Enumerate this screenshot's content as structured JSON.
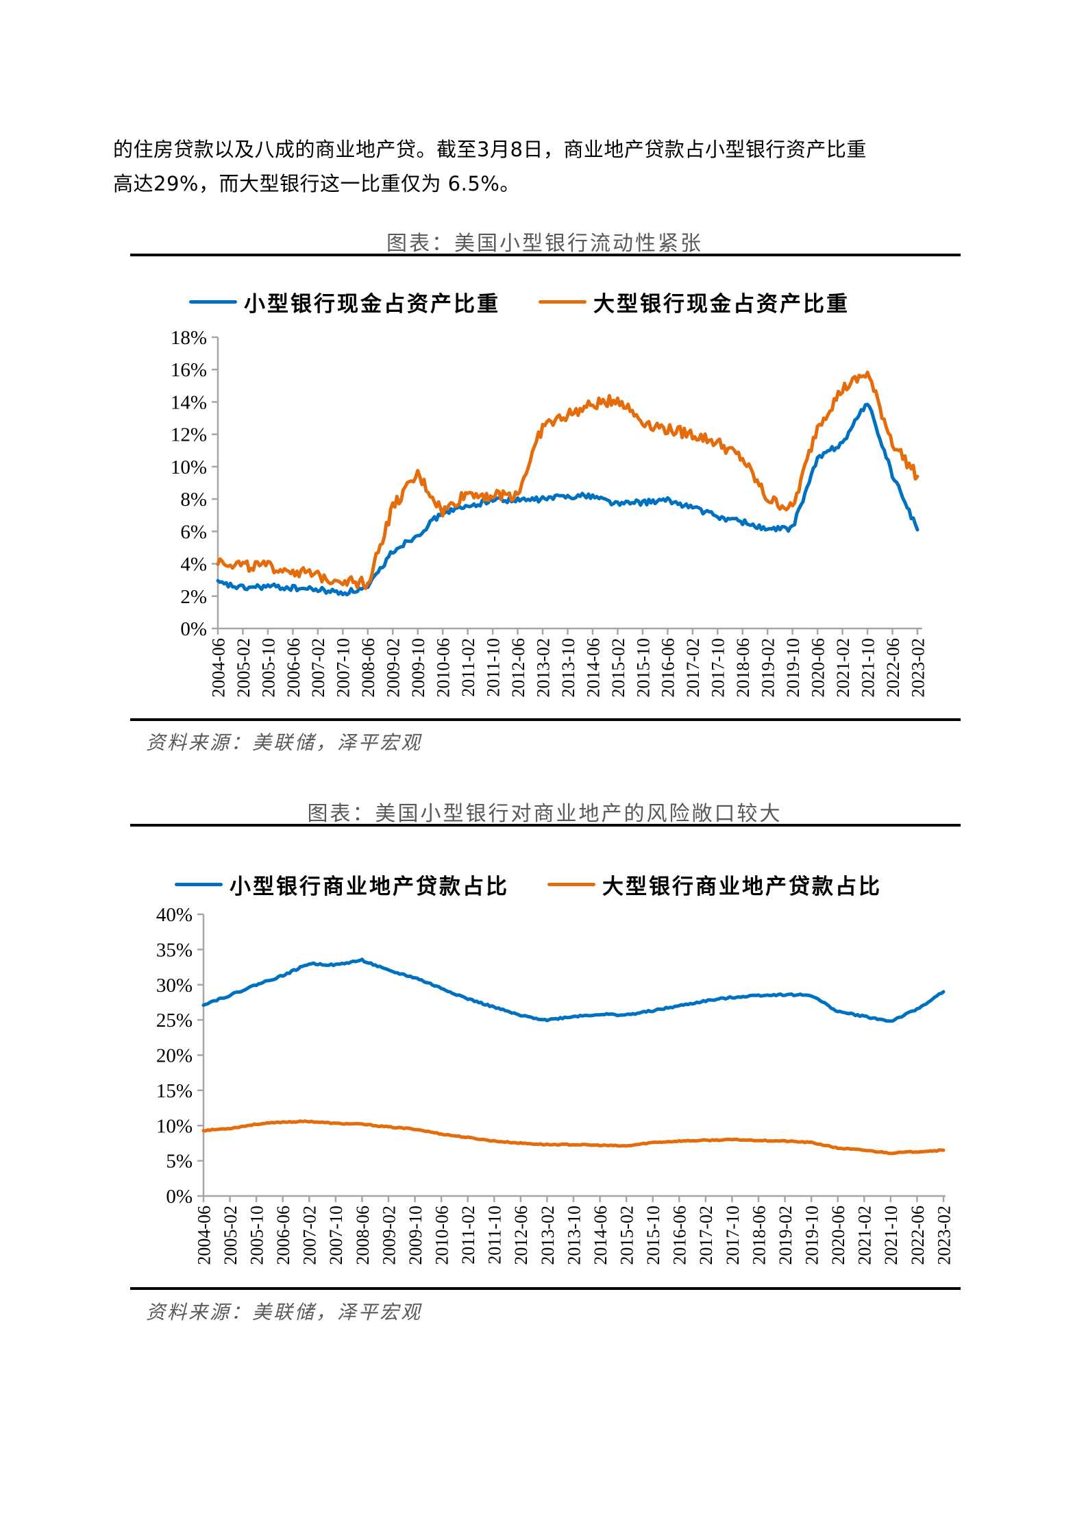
{
  "paragraph": {
    "line1": "的住房贷款以及八成的商业地产贷。截至3月8日，商业地产贷款占小型银行资产比重",
    "line2": "高达29%，而大型银行这一比重仅为 6.5%。"
  },
  "colors": {
    "small_bank": "#0070C0",
    "large_bank": "#E46C0A",
    "axis": "#A6A6A6",
    "caption": "#595959"
  },
  "figure1": {
    "title": "图表：美国小型银行流动性紧张",
    "source": "资料来源：美联储，泽平宏观",
    "legend": [
      "小型银行现金占资产比重",
      "大型银行现金占资产比重"
    ]
  },
  "figure2": {
    "title": "图表：美国小型银行对商业地产的风险敞口较大",
    "source": "资料来源：美联储，泽平宏观",
    "legend": [
      "小型银行商业地产贷款占比",
      "大型银行商业地产贷款占比"
    ]
  },
  "chart_data": [
    {
      "type": "line",
      "title": "美国小型银行流动性紧张",
      "xlabel": "",
      "ylabel": "",
      "ylim": [
        0,
        18
      ],
      "yticks": [
        "0%",
        "2%",
        "4%",
        "6%",
        "8%",
        "10%",
        "12%",
        "14%",
        "16%",
        "18%"
      ],
      "categories": [
        "2004-06",
        "2005-02",
        "2005-10",
        "2006-06",
        "2007-02",
        "2007-10",
        "2008-06",
        "2009-02",
        "2009-10",
        "2010-06",
        "2011-02",
        "2011-10",
        "2012-06",
        "2013-02",
        "2013-10",
        "2014-06",
        "2015-02",
        "2015-10",
        "2016-06",
        "2017-02",
        "2017-10",
        "2018-06",
        "2019-02",
        "2019-10",
        "2020-06",
        "2021-02",
        "2021-10",
        "2022-06",
        "2023-02"
      ],
      "legend_position": "top",
      "grid": false,
      "series": [
        {
          "name": "小型银行现金占资产比重",
          "color": "#0070C0",
          "values": [
            2.8,
            2.5,
            2.6,
            2.5,
            2.4,
            2.2,
            2.5,
            4.8,
            5.8,
            7.2,
            7.5,
            8.0,
            7.9,
            8.0,
            8.2,
            8.2,
            7.7,
            7.8,
            7.9,
            7.5,
            6.9,
            6.6,
            6.1,
            6.2,
            10.5,
            11.5,
            14.0,
            9.5,
            6.1
          ]
        },
        {
          "name": "大型银行现金占资产比重",
          "color": "#E46C0A",
          "values": [
            4.2,
            3.9,
            3.8,
            3.6,
            3.2,
            3.0,
            2.8,
            7.5,
            9.5,
            7.2,
            8.4,
            8.2,
            8.3,
            12.5,
            13.2,
            13.8,
            14.2,
            12.8,
            12.3,
            12.0,
            11.5,
            10.5,
            8.0,
            7.4,
            12.5,
            14.8,
            15.8,
            11.5,
            9.4
          ]
        }
      ]
    },
    {
      "type": "line",
      "title": "美国小型银行对商业地产的风险敞口较大",
      "xlabel": "",
      "ylabel": "",
      "ylim": [
        0,
        40
      ],
      "yticks": [
        "0%",
        "5%",
        "10%",
        "15%",
        "20%",
        "25%",
        "30%",
        "35%",
        "40%"
      ],
      "categories": [
        "2004-06",
        "2005-02",
        "2005-10",
        "2006-06",
        "2007-02",
        "2007-10",
        "2008-06",
        "2009-02",
        "2009-10",
        "2010-06",
        "2011-02",
        "2011-10",
        "2012-06",
        "2013-02",
        "2013-10",
        "2014-06",
        "2015-02",
        "2015-10",
        "2016-06",
        "2017-02",
        "2017-10",
        "2018-06",
        "2019-02",
        "2019-10",
        "2020-06",
        "2021-02",
        "2021-10",
        "2022-06",
        "2023-02"
      ],
      "legend_position": "top",
      "grid": false,
      "series": [
        {
          "name": "小型银行商业地产贷款占比",
          "color": "#0070C0",
          "values": [
            27.2,
            28.5,
            30.0,
            31.3,
            33.0,
            32.8,
            33.5,
            32.0,
            31.0,
            29.5,
            28.0,
            26.8,
            25.6,
            25.0,
            25.5,
            25.8,
            25.7,
            26.3,
            27.0,
            27.7,
            28.2,
            28.5,
            28.6,
            28.5,
            26.2,
            25.5,
            24.8,
            26.5,
            29.0
          ]
        },
        {
          "name": "大型银行商业地产贷款占比",
          "color": "#E46C0A",
          "values": [
            9.3,
            9.6,
            10.2,
            10.5,
            10.6,
            10.3,
            10.2,
            9.8,
            9.5,
            8.8,
            8.3,
            7.8,
            7.5,
            7.3,
            7.3,
            7.2,
            7.1,
            7.6,
            7.8,
            7.9,
            8.0,
            7.9,
            7.8,
            7.6,
            6.8,
            6.5,
            6.1,
            6.3,
            6.5
          ]
        }
      ]
    }
  ]
}
